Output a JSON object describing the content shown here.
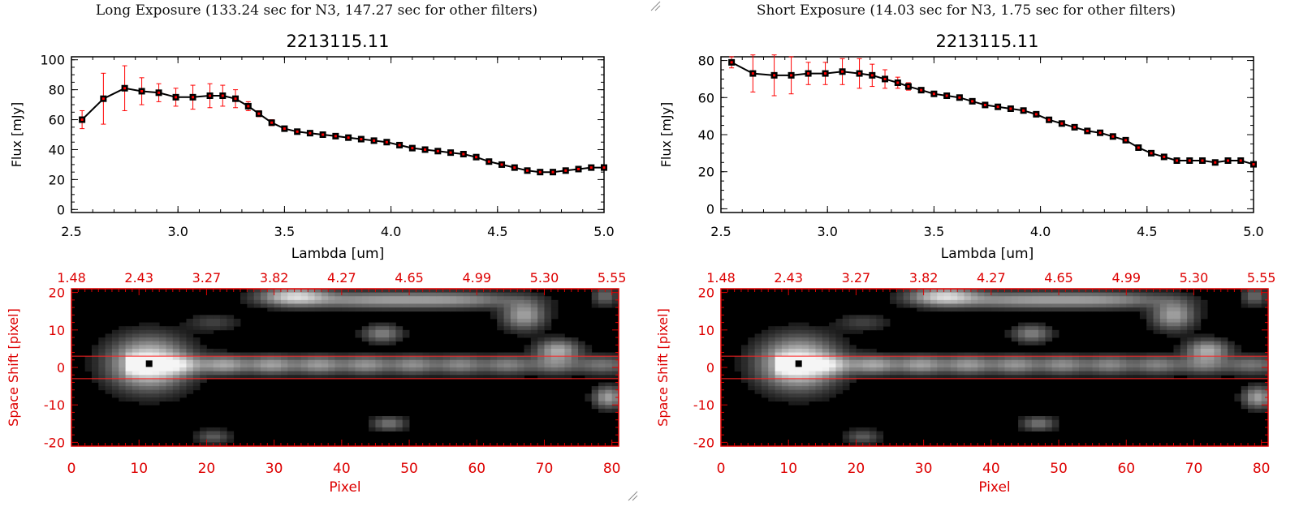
{
  "panels": [
    {
      "exposure_title": "Long Exposure (133.24 sec for N3, 147.27 sec for other filters)",
      "chart_data": {
        "type": "line",
        "title": "2213115.11",
        "xlabel": "Lambda [um]",
        "ylabel": "Flux [mJy]",
        "xlim": [
          2.5,
          5.0
        ],
        "ylim": [
          -2,
          102
        ],
        "xticks": [
          "2.5",
          "3.0",
          "3.5",
          "4.0",
          "4.5",
          "5.0"
        ],
        "yticks": [
          "0",
          "20",
          "40",
          "60",
          "80",
          "100"
        ],
        "x": [
          2.55,
          2.65,
          2.75,
          2.83,
          2.91,
          2.99,
          3.07,
          3.15,
          3.21,
          3.27,
          3.33,
          3.38,
          3.44,
          3.5,
          3.56,
          3.62,
          3.68,
          3.74,
          3.8,
          3.86,
          3.92,
          3.98,
          4.04,
          4.1,
          4.16,
          4.22,
          4.28,
          4.34,
          4.4,
          4.46,
          4.52,
          4.58,
          4.64,
          4.7,
          4.76,
          4.82,
          4.88,
          4.94,
          5.0
        ],
        "y": [
          60,
          74,
          81,
          79,
          78,
          75,
          75,
          76,
          76,
          74,
          69,
          64,
          58,
          54,
          52,
          51,
          50,
          49,
          48,
          47,
          46,
          45,
          43,
          41,
          40,
          39,
          38,
          37,
          35,
          32,
          30,
          28,
          26,
          25,
          25,
          26,
          27,
          28,
          28
        ],
        "yerr": [
          6,
          17,
          15,
          9,
          6,
          6,
          8,
          8,
          7,
          6,
          3,
          2,
          2,
          1,
          1,
          1,
          1,
          1,
          1,
          1,
          1,
          1,
          1,
          1,
          1,
          1,
          1,
          1,
          1,
          1,
          1,
          1,
          1,
          1,
          1,
          1,
          1,
          1,
          1
        ],
        "marker_color": "#000000",
        "error_color": "#ff0000"
      },
      "image_data": {
        "type": "heatmap",
        "xlabel": "Pixel",
        "ylabel": "Space Shift [pixel]",
        "xlim": [
          0,
          81
        ],
        "ylim": [
          -21,
          21
        ],
        "xticks": [
          "0",
          "10",
          "20",
          "30",
          "40",
          "50",
          "60",
          "70",
          "80"
        ],
        "yticks": [
          "-20",
          "-10",
          "0",
          "10",
          "20"
        ],
        "top_ticks": [
          "1.48",
          "2.43",
          "3.27",
          "3.82",
          "4.27",
          "4.65",
          "4.99",
          "5.30",
          "5.55"
        ],
        "aperture": [
          -3,
          3
        ],
        "source_marker": [
          11.5,
          1
        ],
        "axis_color": "#dd0000",
        "line_color": "#ff2222"
      }
    },
    {
      "exposure_title": "Short Exposure (14.03 sec for N3, 1.75 sec for other filters)",
      "chart_data": {
        "type": "line",
        "title": "2213115.11",
        "xlabel": "Lambda [um]",
        "ylabel": "Flux [mJy]",
        "xlim": [
          2.5,
          5.0
        ],
        "ylim": [
          -2,
          82
        ],
        "xticks": [
          "2.5",
          "3.0",
          "3.5",
          "4.0",
          "4.5",
          "5.0"
        ],
        "yticks": [
          "0",
          "20",
          "40",
          "60",
          "80"
        ],
        "x": [
          2.55,
          2.65,
          2.75,
          2.83,
          2.91,
          2.99,
          3.07,
          3.15,
          3.21,
          3.27,
          3.33,
          3.38,
          3.44,
          3.5,
          3.56,
          3.62,
          3.68,
          3.74,
          3.8,
          3.86,
          3.92,
          3.98,
          4.04,
          4.1,
          4.16,
          4.22,
          4.28,
          4.34,
          4.4,
          4.46,
          4.52,
          4.58,
          4.64,
          4.7,
          4.76,
          4.82,
          4.88,
          4.94,
          5.0
        ],
        "y": [
          79,
          73,
          72,
          72,
          73,
          73,
          74,
          73,
          72,
          70,
          68,
          66,
          64,
          62,
          61,
          60,
          58,
          56,
          55,
          54,
          53,
          51,
          48,
          46,
          44,
          42,
          41,
          39,
          37,
          33,
          30,
          28,
          26,
          26,
          26,
          25,
          26,
          26,
          24
        ],
        "yerr": [
          3,
          10,
          11,
          10,
          6,
          6,
          7,
          8,
          6,
          5,
          3,
          2,
          1,
          1,
          1,
          1,
          1,
          1,
          1,
          1,
          1,
          1,
          1,
          1,
          1,
          1,
          1,
          1,
          1,
          1,
          1,
          1,
          1,
          1,
          1,
          1,
          1,
          1,
          1
        ],
        "marker_color": "#000000",
        "error_color": "#ff0000"
      },
      "image_data": {
        "type": "heatmap",
        "xlabel": "Pixel",
        "ylabel": "Space Shift [pixel]",
        "xlim": [
          0,
          81
        ],
        "ylim": [
          -21,
          21
        ],
        "xticks": [
          "0",
          "10",
          "20",
          "30",
          "40",
          "50",
          "60",
          "70",
          "80"
        ],
        "yticks": [
          "-20",
          "-10",
          "0",
          "10",
          "20"
        ],
        "top_ticks": [
          "1.48",
          "2.43",
          "3.27",
          "3.82",
          "4.27",
          "4.65",
          "4.99",
          "5.30",
          "5.55"
        ],
        "aperture": [
          -3,
          3
        ],
        "source_marker": [
          11.5,
          1
        ],
        "axis_color": "#dd0000",
        "line_color": "#ff2222"
      }
    }
  ]
}
